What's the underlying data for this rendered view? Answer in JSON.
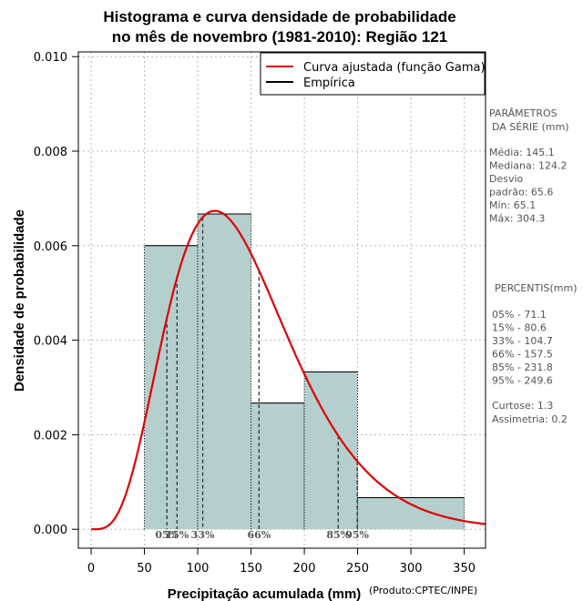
{
  "chart_data": {
    "type": "bar",
    "title_line1": "Histograma e curva densidade de probabilidade",
    "title_line2": "no mês de novembro (1981-2010): Região 121",
    "xlabel": "Precipitação acumulada (mm)",
    "ylabel": "Densidade de probabilidade",
    "credit": "(Produto:CPTEC/INPE)",
    "xlim": [
      -12,
      370
    ],
    "ylim": [
      -0.0004,
      0.0101
    ],
    "xticks": [
      0,
      50,
      100,
      150,
      200,
      250,
      300,
      350
    ],
    "yticks": [
      0.0,
      0.002,
      0.004,
      0.006,
      0.008,
      0.01
    ],
    "ytick_labels": [
      "0.000",
      "0.002",
      "0.004",
      "0.006",
      "0.008",
      "0.010"
    ],
    "grid": true,
    "bins": [
      {
        "from": 50,
        "to": 100,
        "density": 0.006
      },
      {
        "from": 100,
        "to": 150,
        "density": 0.00667
      },
      {
        "from": 150,
        "to": 200,
        "density": 0.00267
      },
      {
        "from": 200,
        "to": 250,
        "density": 0.00333
      },
      {
        "from": 250,
        "to": 350,
        "density": 0.00067
      }
    ],
    "bar_color": "#b5cfcf",
    "curve_color": "#e00000",
    "gamma": {
      "shape": 5.0,
      "scale": 29.0
    },
    "percentile_lines": [
      {
        "label": "05%",
        "value": 71.1
      },
      {
        "label": "15%",
        "value": 80.6
      },
      {
        "label": "33%",
        "value": 104.7
      },
      {
        "label": "66%",
        "value": 157.5
      },
      {
        "label": "85%",
        "value": 231.8
      },
      {
        "label": "95%",
        "value": 249.6
      }
    ],
    "legend": {
      "position": "top-right",
      "entries": [
        {
          "label": "Curva ajustada (função Gama)",
          "color": "#e00000"
        },
        {
          "label": "Empírica",
          "color": "#000000"
        }
      ]
    },
    "stats": {
      "header1": "PARÂMETROS",
      "header2": "DA SÉRIE (mm)",
      "lines": [
        "Média:  145.1",
        "Mediana:  124.2",
        "Desvio",
        "padrão:  65.6",
        "Mín:  65.1",
        "Máx:  304.3"
      ]
    },
    "percentis": {
      "header": "PERCENTIS(mm)",
      "lines": [
        "05% -  71.1",
        "15% -  80.6",
        "33% -  104.7",
        "66% -  157.5",
        "85% -  231.8",
        "95% -  249.6"
      ],
      "extra": [
        "Curtose:  1.3",
        "Assimetria:  0.2"
      ]
    }
  }
}
